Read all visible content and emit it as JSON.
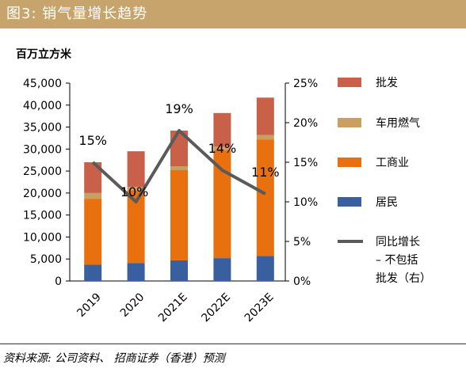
{
  "header": {
    "title": "图3: 销气量增长趋势"
  },
  "unit_label": "百万立方米",
  "source": "资料来源: 公司资料、 招商证券（香港）预测",
  "colors": {
    "header_bg": "#c6a46c",
    "pifa": "#c8604a",
    "cheyong": "#c9a062",
    "gongshangye": "#e8700f",
    "jumin": "#3a5f9e",
    "line": "#5a5a5a"
  },
  "chart_data": {
    "type": "bar",
    "stacked": true,
    "categories": [
      "2019",
      "2020",
      "2021E",
      "2022E",
      "2023E"
    ],
    "series": [
      {
        "name": "居民",
        "key": "jumin",
        "values": [
          3700,
          4100,
          4700,
          5200,
          5700
        ]
      },
      {
        "name": "工商业",
        "key": "gongshangye",
        "values": [
          15000,
          16500,
          20500,
          24500,
          26500
        ]
      },
      {
        "name": "车用燃气",
        "key": "cheyong",
        "values": [
          1300,
          800,
          900,
          900,
          1000
        ]
      },
      {
        "name": "批发",
        "key": "pifa",
        "values": [
          7000,
          8100,
          8100,
          7600,
          8500
        ]
      }
    ],
    "line_series": {
      "name_lines": [
        "同比增长",
        "– 不包括",
        "批发（右）"
      ],
      "key": "line",
      "values": [
        0.15,
        0.1,
        0.19,
        0.14,
        0.11
      ],
      "labels": [
        "15%",
        "10%",
        "19%",
        "14%",
        "11%"
      ]
    },
    "legend_order": [
      "pifa",
      "cheyong",
      "gongshangye",
      "jumin"
    ],
    "legend_labels": {
      "pifa": "批发",
      "cheyong": "车用燃气",
      "gongshangye": "工商业",
      "jumin": "居民"
    },
    "ylim": [
      0,
      45000
    ],
    "yticks": [
      "0",
      "5,000",
      "10,000",
      "15,000",
      "20,000",
      "25,000",
      "30,000",
      "35,000",
      "40,000",
      "45,000"
    ],
    "y2lim": [
      0,
      0.25
    ],
    "y2ticks": [
      "0%",
      "5%",
      "10%",
      "15%",
      "20%",
      "25%"
    ],
    "legend_position": "right"
  }
}
